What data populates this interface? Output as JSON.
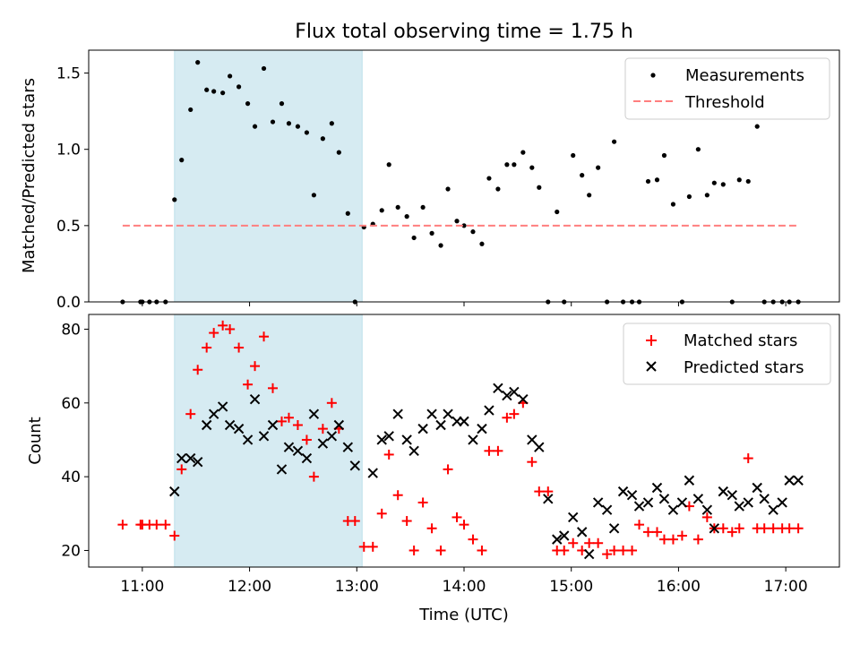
{
  "chart_data": [
    {
      "type": "scatter",
      "title": "Flux total observing time = 1.75 h",
      "xlabel": "",
      "ylabel": "Matched/Predicted stars",
      "xlim": [
        "10:30",
        "17:30"
      ],
      "ylim": [
        0,
        1.65
      ],
      "yticks": [
        0.0,
        0.5,
        1.0,
        1.5
      ],
      "ytick_labels": [
        "0.0",
        "0.5",
        "1.0",
        "1.5"
      ],
      "xticks": [
        "11:00",
        "12:00",
        "13:00",
        "14:00",
        "15:00",
        "16:00",
        "17:00"
      ],
      "shaded_span": [
        "11:18",
        "13:03"
      ],
      "shaded_color": "#add8e6",
      "legend_position": "upper right",
      "series": [
        {
          "name": "Measurements",
          "kind": "points",
          "color": "#000000",
          "x": [
            "10:49",
            "10:59",
            "11:00",
            "11:04",
            "11:08",
            "11:13",
            "11:18",
            "11:22",
            "11:27",
            "11:31",
            "11:36",
            "11:40",
            "11:45",
            "11:49",
            "11:54",
            "11:59",
            "12:03",
            "12:08",
            "12:13",
            "12:18",
            "12:22",
            "12:27",
            "12:32",
            "12:36",
            "12:41",
            "12:46",
            "12:50",
            "12:55",
            "12:59",
            "13:04",
            "13:09",
            "13:14",
            "13:18",
            "13:23",
            "13:28",
            "13:32",
            "13:37",
            "13:42",
            "13:47",
            "13:51",
            "13:56",
            "14:00",
            "14:05",
            "14:10",
            "14:14",
            "14:19",
            "14:24",
            "14:28",
            "14:33",
            "14:38",
            "14:42",
            "14:47",
            "14:52",
            "14:56",
            "15:01",
            "15:06",
            "15:10",
            "15:15",
            "15:20",
            "15:24",
            "15:29",
            "15:34",
            "15:38",
            "15:43",
            "15:48",
            "15:52",
            "15:57",
            "16:02",
            "16:06",
            "16:11",
            "16:16",
            "16:20",
            "16:25",
            "16:30",
            "16:34",
            "16:39",
            "16:44",
            "16:48",
            "16:53",
            "16:58",
            "17:02",
            "17:07"
          ],
          "y": [
            0.0,
            0.0,
            0.0,
            0.0,
            0.0,
            0.0,
            0.67,
            0.93,
            1.26,
            1.57,
            1.39,
            1.38,
            1.37,
            1.48,
            1.41,
            1.3,
            1.15,
            1.53,
            1.18,
            1.3,
            1.17,
            1.15,
            1.11,
            0.7,
            1.07,
            1.17,
            0.98,
            0.58,
            0.0,
            0.49,
            0.51,
            0.6,
            0.9,
            0.62,
            0.56,
            0.42,
            0.62,
            0.45,
            0.37,
            0.74,
            0.53,
            0.5,
            0.46,
            0.38,
            0.81,
            0.74,
            0.9,
            0.9,
            0.98,
            0.88,
            0.75,
            0.0,
            0.59,
            0.0,
            0.96,
            0.83,
            0.7,
            0.88,
            0.0,
            1.05,
            0.0,
            0.0,
            0.0,
            0.79,
            0.8,
            0.96,
            0.64,
            0.0,
            0.69,
            1.0,
            0.7,
            0.78,
            0.77,
            0.0,
            0.8,
            0.79,
            1.15,
            0.0,
            0.0,
            0.0,
            0.0,
            0.0
          ]
        },
        {
          "name": "Threshold",
          "kind": "line",
          "color": "#ff7f7f",
          "x": [
            "10:49",
            "17:07"
          ],
          "y": [
            0.5,
            0.5
          ]
        }
      ]
    },
    {
      "type": "scatter",
      "title": "",
      "xlabel": "Time (UTC)",
      "ylabel": "Count",
      "xlim": [
        "10:30",
        "17:30"
      ],
      "ylim": [
        15.5,
        84
      ],
      "yticks": [
        20,
        40,
        60,
        80
      ],
      "ytick_labels": [
        "20",
        "40",
        "60",
        "80"
      ],
      "xticks": [
        "11:00",
        "12:00",
        "13:00",
        "14:00",
        "15:00",
        "16:00",
        "17:00"
      ],
      "xtick_labels": [
        "11:00",
        "12:00",
        "13:00",
        "14:00",
        "15:00",
        "16:00",
        "17:00"
      ],
      "shaded_span": [
        "11:18",
        "13:03"
      ],
      "shaded_color": "#add8e6",
      "legend_position": "upper right",
      "series": [
        {
          "name": "Matched stars",
          "marker": "plus",
          "color": "#ff0000",
          "x": [
            "10:49",
            "10:59",
            "11:00",
            "11:04",
            "11:08",
            "11:13",
            "11:18",
            "11:22",
            "11:27",
            "11:31",
            "11:36",
            "11:40",
            "11:45",
            "11:49",
            "11:54",
            "11:59",
            "12:03",
            "12:08",
            "12:13",
            "12:18",
            "12:22",
            "12:27",
            "12:32",
            "12:36",
            "12:41",
            "12:46",
            "12:50",
            "12:55",
            "12:59",
            "13:04",
            "13:09",
            "13:14",
            "13:18",
            "13:23",
            "13:28",
            "13:32",
            "13:37",
            "13:42",
            "13:47",
            "13:51",
            "13:56",
            "14:00",
            "14:05",
            "14:10",
            "14:14",
            "14:19",
            "14:24",
            "14:28",
            "14:33",
            "14:38",
            "14:42",
            "14:47",
            "14:52",
            "14:56",
            "15:01",
            "15:06",
            "15:10",
            "15:15",
            "15:20",
            "15:24",
            "15:29",
            "15:34",
            "15:38",
            "15:43",
            "15:48",
            "15:52",
            "15:57",
            "16:02",
            "16:06",
            "16:11",
            "16:16",
            "16:20",
            "16:25",
            "16:30",
            "16:34",
            "16:39",
            "16:44",
            "16:48",
            "16:53",
            "16:58",
            "17:02",
            "17:07"
          ],
          "y": [
            27,
            27,
            27,
            27,
            27,
            27,
            24,
            42,
            57,
            69,
            75,
            79,
            81,
            80,
            75,
            65,
            70,
            78,
            64,
            55,
            56,
            54,
            50,
            40,
            53,
            60,
            53,
            28,
            28,
            21,
            21,
            30,
            46,
            35,
            28,
            20,
            33,
            26,
            20,
            42,
            29,
            27,
            23,
            20,
            47,
            47,
            56,
            57,
            60,
            44,
            36,
            36,
            20,
            20,
            22,
            20,
            22,
            22,
            19,
            20,
            20,
            20,
            27,
            25,
            25,
            23,
            23,
            24,
            32,
            23,
            29,
            26,
            26,
            25,
            26,
            45,
            26,
            26,
            26,
            26,
            26,
            26
          ]
        },
        {
          "name": "Predicted stars",
          "marker": "x",
          "color": "#000000",
          "x": [
            "11:18",
            "11:22",
            "11:27",
            "11:31",
            "11:36",
            "11:40",
            "11:45",
            "11:49",
            "11:54",
            "11:59",
            "12:03",
            "12:08",
            "12:13",
            "12:18",
            "12:22",
            "12:27",
            "12:32",
            "12:36",
            "12:41",
            "12:46",
            "12:50",
            "12:55",
            "12:59",
            "13:09",
            "13:14",
            "13:18",
            "13:23",
            "13:28",
            "13:32",
            "13:37",
            "13:42",
            "13:47",
            "13:51",
            "13:56",
            "14:00",
            "14:05",
            "14:10",
            "14:14",
            "14:19",
            "14:24",
            "14:28",
            "14:33",
            "14:38",
            "14:42",
            "14:47",
            "14:52",
            "14:56",
            "15:01",
            "15:06",
            "15:10",
            "15:15",
            "15:20",
            "15:24",
            "15:29",
            "15:34",
            "15:38",
            "15:43",
            "15:48",
            "15:52",
            "15:57",
            "16:02",
            "16:06",
            "16:11",
            "16:16",
            "16:20",
            "16:25",
            "16:30",
            "16:34",
            "16:39",
            "16:44",
            "16:48",
            "16:53",
            "16:58",
            "17:02",
            "17:07"
          ],
          "y": [
            36,
            45,
            45,
            44,
            54,
            57,
            59,
            54,
            53,
            50,
            61,
            51,
            54,
            42,
            48,
            47,
            45,
            57,
            49,
            51,
            54,
            48,
            43,
            41,
            50,
            51,
            57,
            50,
            47,
            53,
            57,
            54,
            57,
            55,
            55,
            50,
            53,
            58,
            64,
            62,
            63,
            61,
            50,
            48,
            34,
            23,
            24,
            29,
            25,
            19,
            33,
            31,
            26,
            36,
            35,
            32,
            33,
            37,
            34,
            31,
            33,
            39,
            34,
            31,
            26,
            36,
            35,
            32,
            33,
            37,
            34,
            31,
            33,
            39,
            39
          ]
        }
      ]
    }
  ]
}
